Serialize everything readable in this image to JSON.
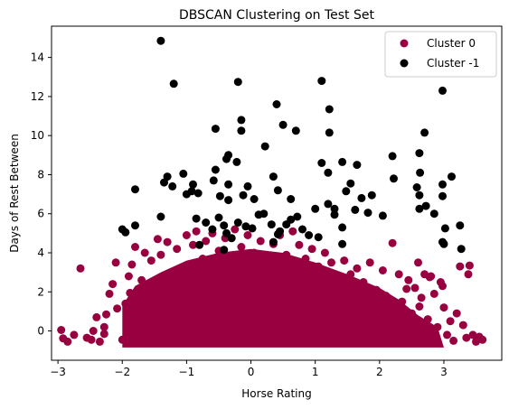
{
  "chart_data": {
    "type": "scatter",
    "title": "DBSCAN Clustering on Test Set",
    "xlabel": "Horse Rating",
    "ylabel": "Days of Rest Between",
    "xlim": [
      -3.1,
      3.9
    ],
    "ylim": [
      -1.5,
      15.6
    ],
    "xticks": [
      "−3",
      "−2",
      "−1",
      "0",
      "1",
      "2",
      "3"
    ],
    "yticks": [
      "0",
      "2",
      "4",
      "6",
      "8",
      "10",
      "12",
      "14"
    ],
    "grid": false,
    "legend_position": "top-right",
    "series": [
      {
        "name": "Cluster 0",
        "color": "#99003f",
        "points": [
          [
            -2.95,
            0.05
          ],
          [
            -2.92,
            -0.38
          ],
          [
            -2.85,
            -0.55
          ],
          [
            -2.75,
            -0.2
          ],
          [
            -2.65,
            3.2
          ],
          [
            -2.55,
            -0.35
          ],
          [
            -2.45,
            0.0
          ],
          [
            -2.4,
            0.7
          ],
          [
            -2.35,
            -0.55
          ],
          [
            -2.28,
            0.2
          ],
          [
            -2.25,
            0.85
          ],
          [
            -2.2,
            1.9
          ],
          [
            -2.15,
            2.4
          ],
          [
            -2.1,
            3.5
          ],
          [
            -2.0,
            -0.45
          ],
          [
            -1.95,
            1.4
          ],
          [
            -1.9,
            2.8
          ],
          [
            -1.85,
            3.4
          ],
          [
            -1.8,
            4.3
          ],
          [
            -1.7,
            2.6
          ],
          [
            -1.65,
            4.0
          ],
          [
            -1.55,
            3.6
          ],
          [
            -1.5,
            2.2
          ],
          [
            -1.45,
            4.7
          ],
          [
            -1.4,
            3.9
          ],
          [
            -1.3,
            4.55
          ],
          [
            -1.25,
            2.9
          ],
          [
            -1.15,
            4.2
          ],
          [
            -1.05,
            3.2
          ],
          [
            -1.0,
            4.9
          ],
          [
            -0.9,
            4.4
          ],
          [
            -0.85,
            5.1
          ],
          [
            -0.75,
            3.7
          ],
          [
            -0.7,
            4.6
          ],
          [
            -0.6,
            5.0
          ],
          [
            -0.5,
            4.1
          ],
          [
            -0.4,
            4.75
          ],
          [
            -0.35,
            3.6
          ],
          [
            -0.25,
            5.2
          ],
          [
            -0.15,
            4.3
          ],
          [
            -0.05,
            4.9
          ],
          [
            0.05,
            4.0
          ],
          [
            0.15,
            4.6
          ],
          [
            0.25,
            3.8
          ],
          [
            0.35,
            4.45
          ],
          [
            0.45,
            4.9
          ],
          [
            0.55,
            3.9
          ],
          [
            0.65,
            5.1
          ],
          [
            0.75,
            4.4
          ],
          [
            0.85,
            3.7
          ],
          [
            0.95,
            4.2
          ],
          [
            1.05,
            3.3
          ],
          [
            1.15,
            4.0
          ],
          [
            1.25,
            3.5
          ],
          [
            1.35,
            2.8
          ],
          [
            1.45,
            3.6
          ],
          [
            1.55,
            2.9
          ],
          [
            1.65,
            3.2
          ],
          [
            1.75,
            2.5
          ],
          [
            1.85,
            3.5
          ],
          [
            1.95,
            2.1
          ],
          [
            2.05,
            3.1
          ],
          [
            2.1,
            1.8
          ],
          [
            2.2,
            4.5
          ],
          [
            2.3,
            2.9
          ],
          [
            2.35,
            1.5
          ],
          [
            2.45,
            2.6
          ],
          [
            2.5,
            0.9
          ],
          [
            2.55,
            2.2
          ],
          [
            2.6,
            3.5
          ],
          [
            2.65,
            1.7
          ],
          [
            2.7,
            2.9
          ],
          [
            2.75,
            0.6
          ],
          [
            2.8,
            2.8
          ],
          [
            2.85,
            1.9
          ],
          [
            2.9,
            0.2
          ],
          [
            2.95,
            2.5
          ],
          [
            3.0,
            1.2
          ],
          [
            3.05,
            -0.2
          ],
          [
            3.1,
            0.5
          ],
          [
            3.15,
            -0.5
          ],
          [
            3.2,
            0.9
          ],
          [
            3.25,
            3.3
          ],
          [
            3.3,
            0.3
          ],
          [
            3.35,
            -0.35
          ],
          [
            3.4,
            3.35
          ],
          [
            3.45,
            -0.2
          ],
          [
            3.5,
            -0.55
          ],
          [
            3.55,
            -0.3
          ],
          [
            3.6,
            -0.45
          ],
          [
            3.38,
            2.9
          ],
          [
            2.98,
            2.3
          ],
          [
            2.78,
            2.75
          ],
          [
            2.62,
            1.25
          ],
          [
            2.42,
            2.15
          ],
          [
            2.28,
            1.35
          ],
          [
            2.08,
            0.9
          ],
          [
            1.92,
            1.6
          ],
          [
            1.72,
            1.95
          ],
          [
            1.52,
            2.35
          ],
          [
            1.32,
            2.15
          ],
          [
            1.12,
            2.65
          ],
          [
            0.92,
            2.85
          ],
          [
            0.72,
            3.05
          ],
          [
            0.52,
            3.25
          ],
          [
            0.32,
            3.45
          ],
          [
            0.12,
            3.65
          ],
          [
            -0.08,
            3.75
          ],
          [
            -0.28,
            3.55
          ],
          [
            -0.48,
            3.35
          ],
          [
            -0.68,
            3.15
          ],
          [
            -0.88,
            2.95
          ],
          [
            -1.08,
            2.75
          ],
          [
            -1.28,
            2.55
          ],
          [
            -1.48,
            2.35
          ],
          [
            -1.68,
            2.15
          ],
          [
            -1.88,
            1.95
          ],
          [
            -2.08,
            1.15
          ],
          [
            -2.28,
            -0.15
          ],
          [
            -2.48,
            -0.45
          ]
        ]
      },
      {
        "name": "Cluster -1",
        "color": "#000000",
        "points": [
          [
            -1.4,
            14.85
          ],
          [
            -1.2,
            12.65
          ],
          [
            -0.2,
            12.75
          ],
          [
            1.1,
            12.8
          ],
          [
            2.98,
            12.3
          ],
          [
            0.4,
            11.6
          ],
          [
            1.22,
            11.35
          ],
          [
            -0.15,
            10.8
          ],
          [
            -0.55,
            10.35
          ],
          [
            -0.15,
            10.25
          ],
          [
            0.5,
            10.55
          ],
          [
            0.7,
            10.25
          ],
          [
            1.22,
            10.15
          ],
          [
            2.7,
            10.15
          ],
          [
            0.22,
            9.45
          ],
          [
            -0.35,
            9.0
          ],
          [
            -0.55,
            8.25
          ],
          [
            -0.38,
            8.8
          ],
          [
            -0.22,
            8.65
          ],
          [
            -1.05,
            8.05
          ],
          [
            -0.9,
            7.5
          ],
          [
            -0.58,
            7.7
          ],
          [
            -0.35,
            7.5
          ],
          [
            -0.05,
            7.4
          ],
          [
            0.35,
            7.9
          ],
          [
            1.1,
            8.6
          ],
          [
            1.2,
            8.1
          ],
          [
            1.42,
            8.65
          ],
          [
            1.65,
            8.5
          ],
          [
            2.2,
            8.95
          ],
          [
            2.22,
            7.8
          ],
          [
            2.62,
            9.1
          ],
          [
            2.63,
            8.1
          ],
          [
            2.98,
            7.5
          ],
          [
            3.12,
            7.9
          ],
          [
            -1.8,
            7.25
          ],
          [
            -1.35,
            7.6
          ],
          [
            -1.3,
            7.9
          ],
          [
            -1.22,
            7.4
          ],
          [
            -1.0,
            7.0
          ],
          [
            -0.92,
            7.15
          ],
          [
            -0.82,
            7.05
          ],
          [
            -0.48,
            6.9
          ],
          [
            -0.35,
            6.7
          ],
          [
            -0.12,
            6.95
          ],
          [
            0.05,
            6.75
          ],
          [
            0.42,
            7.2
          ],
          [
            0.62,
            6.75
          ],
          [
            1.0,
            6.25
          ],
          [
            1.3,
            6.25
          ],
          [
            1.48,
            7.15
          ],
          [
            1.55,
            7.55
          ],
          [
            1.72,
            6.8
          ],
          [
            1.88,
            6.95
          ],
          [
            2.58,
            7.35
          ],
          [
            2.62,
            6.95
          ],
          [
            2.98,
            6.9
          ],
          [
            -2.0,
            5.2
          ],
          [
            -1.95,
            5.05
          ],
          [
            -1.8,
            5.4
          ],
          [
            -1.4,
            5.85
          ],
          [
            -0.85,
            5.75
          ],
          [
            -0.7,
            5.55
          ],
          [
            -0.6,
            5.2
          ],
          [
            -0.5,
            5.8
          ],
          [
            -0.42,
            5.4
          ],
          [
            -0.38,
            5.0
          ],
          [
            -0.3,
            4.75
          ],
          [
            -0.2,
            5.55
          ],
          [
            -0.08,
            5.35
          ],
          [
            0.02,
            5.25
          ],
          [
            0.12,
            5.95
          ],
          [
            0.2,
            6.0
          ],
          [
            0.32,
            5.45
          ],
          [
            0.45,
            5.1
          ],
          [
            0.55,
            5.45
          ],
          [
            0.62,
            5.7
          ],
          [
            0.72,
            5.85
          ],
          [
            0.8,
            5.2
          ],
          [
            0.9,
            4.9
          ],
          [
            1.2,
            6.5
          ],
          [
            1.3,
            5.95
          ],
          [
            1.42,
            5.3
          ],
          [
            1.62,
            6.2
          ],
          [
            1.82,
            6.05
          ],
          [
            2.05,
            5.9
          ],
          [
            2.62,
            6.25
          ],
          [
            2.72,
            6.4
          ],
          [
            2.85,
            6.0
          ],
          [
            3.02,
            5.25
          ],
          [
            3.25,
            5.4
          ],
          [
            3.27,
            4.2
          ],
          [
            3.0,
            4.45
          ],
          [
            1.42,
            4.45
          ],
          [
            1.05,
            4.8
          ],
          [
            0.42,
            4.95
          ],
          [
            -0.8,
            4.4
          ],
          [
            -0.42,
            4.15
          ],
          [
            0.35,
            4.55
          ],
          [
            2.98,
            4.55
          ]
        ]
      }
    ]
  }
}
